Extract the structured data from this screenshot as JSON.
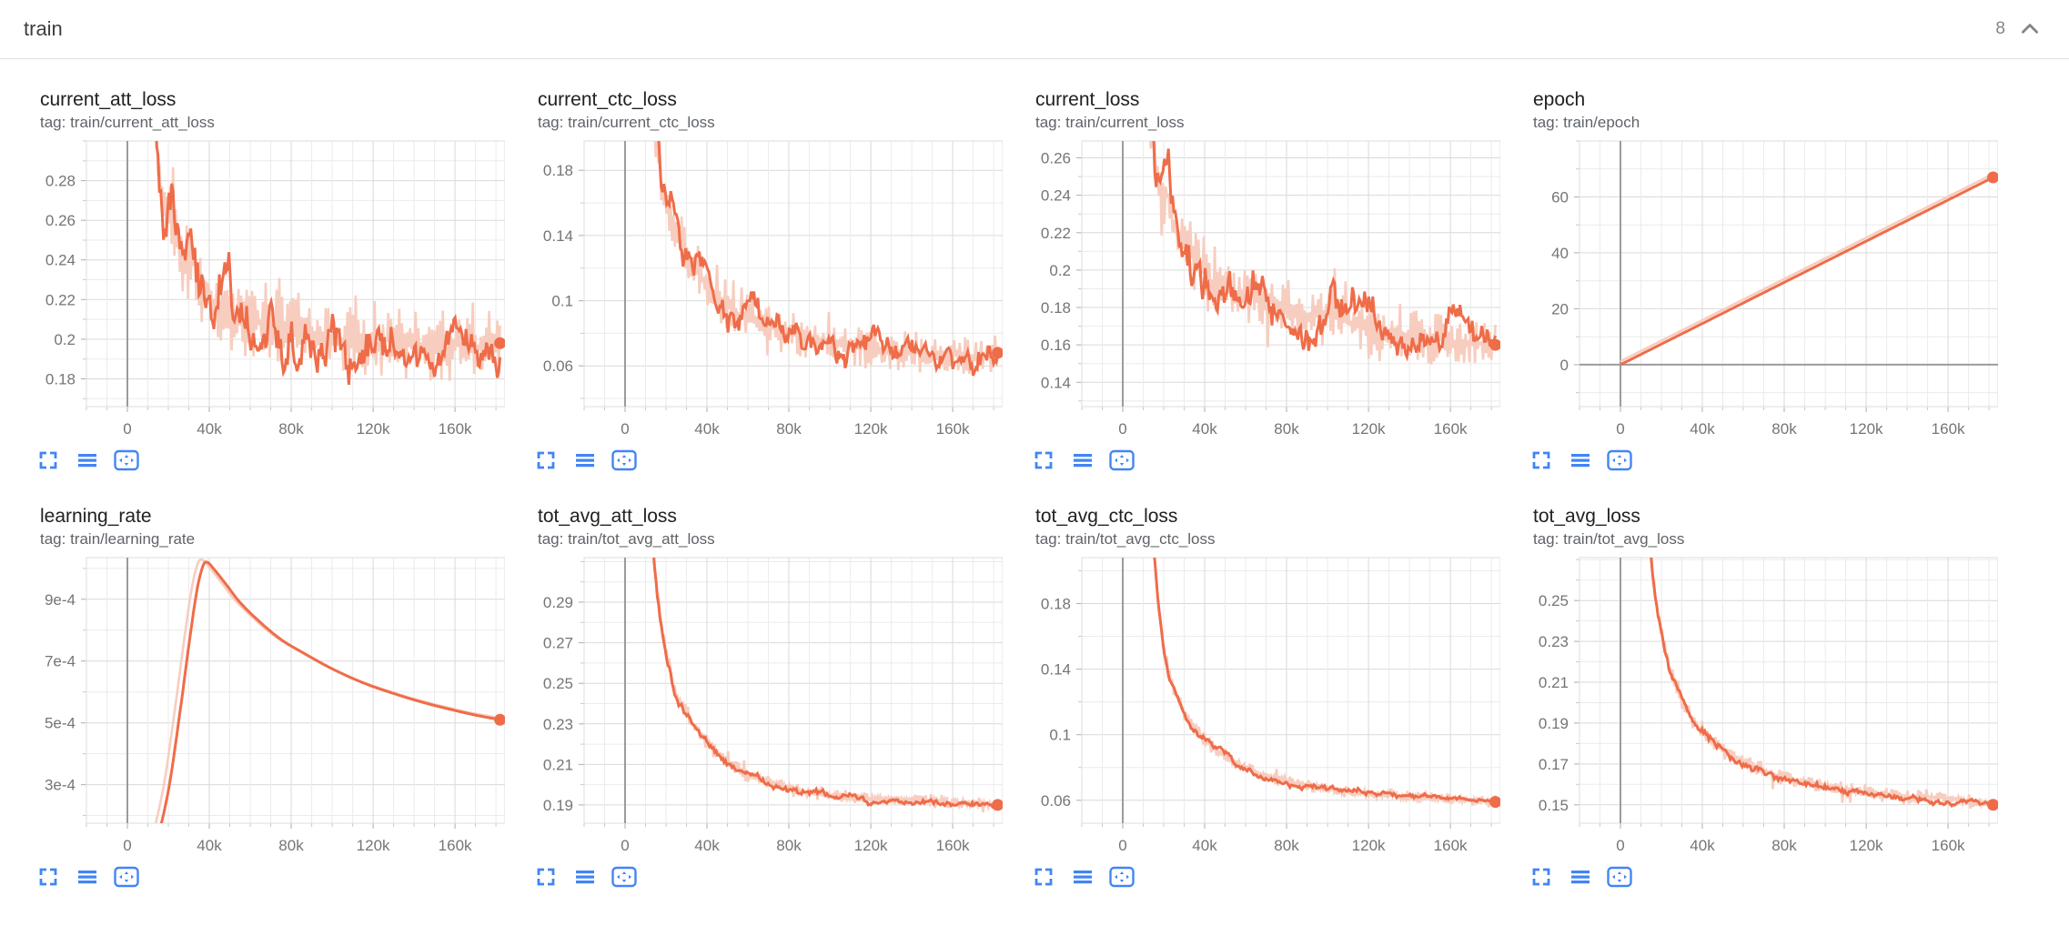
{
  "header": {
    "title": "train",
    "count": "8",
    "collapse_icon": "chevron-up"
  },
  "colors": {
    "accent": "#ef6c49",
    "accent_faint": "#f7cdbf",
    "toolbar_blue": "#4285f4",
    "grid_major": "#d9d9d9",
    "grid_minor": "#ebebeb",
    "axis_zero": "#9b9b9b",
    "tick_text": "#757575",
    "title_text": "#202124",
    "tag_text": "#5f6368",
    "divider": "#e0e0e0"
  },
  "toolbar": {
    "buttons": [
      {
        "name": "fullscreen",
        "icon": "fullscreen-icon"
      },
      {
        "name": "full-width",
        "icon": "horizontal-bars-icon"
      },
      {
        "name": "fit-data",
        "icon": "fit-domain-icon",
        "selected": true
      }
    ]
  },
  "plot_config": {
    "xlim": [
      -20000,
      184400
    ],
    "x_grid_step": 10000,
    "x_ticks": [
      0,
      40000,
      80000,
      120000,
      160000
    ],
    "x_tick_labels": [
      "0",
      "40k",
      "80k",
      "120k",
      "160k"
    ]
  },
  "chart_data": [
    {
      "type": "line",
      "title": "current_att_loss",
      "tag": "tag: train/current_att_loss",
      "ylim": [
        0.166,
        0.3
      ],
      "y_minor_step": 0.01,
      "y_ticks": [
        0.28,
        0.26,
        0.24,
        0.22,
        0.2,
        0.18
      ],
      "y_tick_labels": [
        "0.28",
        "0.26",
        "0.24",
        "0.22",
        "0.2",
        "0.18"
      ],
      "x_start": 9000,
      "x_end": 182000,
      "end_value": 0.198,
      "noise": 0.009,
      "raw_noise": 0.022,
      "raw_lead": 0,
      "raw_dy": 0,
      "seed": 3,
      "zero_y_line": false,
      "end_dot": true,
      "keypoints": [
        [
          9000,
          0.4
        ],
        [
          12000,
          0.34
        ],
        [
          14000,
          0.305
        ],
        [
          16000,
          0.285
        ],
        [
          18000,
          0.268
        ],
        [
          20000,
          0.262
        ],
        [
          22000,
          0.268
        ],
        [
          24000,
          0.252
        ],
        [
          26000,
          0.243
        ],
        [
          28000,
          0.238
        ],
        [
          30000,
          0.243
        ],
        [
          33000,
          0.235
        ],
        [
          36000,
          0.228
        ],
        [
          40000,
          0.222
        ],
        [
          45000,
          0.215
        ],
        [
          50000,
          0.212
        ],
        [
          55000,
          0.209
        ],
        [
          60000,
          0.211
        ],
        [
          70000,
          0.207
        ],
        [
          80000,
          0.205
        ],
        [
          90000,
          0.202
        ],
        [
          100000,
          0.201
        ],
        [
          110000,
          0.199
        ],
        [
          120000,
          0.198
        ],
        [
          130000,
          0.199
        ],
        [
          140000,
          0.197
        ],
        [
          150000,
          0.196
        ],
        [
          160000,
          0.197
        ],
        [
          170000,
          0.196
        ],
        [
          182000,
          0.198
        ]
      ]
    },
    {
      "type": "line",
      "title": "current_ctc_loss",
      "tag": "tag: train/current_ctc_loss",
      "ylim": [
        0.035,
        0.198
      ],
      "y_minor_step": 0.02,
      "y_ticks": [
        0.18,
        0.14,
        0.1,
        0.06
      ],
      "y_tick_labels": [
        "0.18",
        "0.14",
        "0.1",
        "0.06"
      ],
      "x_start": 9000,
      "x_end": 182000,
      "end_value": 0.068,
      "noise": 0.007,
      "raw_noise": 0.018,
      "raw_lead": 0,
      "raw_dy": 0,
      "seed": 11,
      "zero_y_line": false,
      "end_dot": true,
      "keypoints": [
        [
          9000,
          0.3
        ],
        [
          12000,
          0.245
        ],
        [
          14000,
          0.215
        ],
        [
          16000,
          0.19
        ],
        [
          18000,
          0.168
        ],
        [
          20000,
          0.158
        ],
        [
          22000,
          0.15
        ],
        [
          24000,
          0.152
        ],
        [
          26000,
          0.141
        ],
        [
          28000,
          0.134
        ],
        [
          30000,
          0.129
        ],
        [
          33000,
          0.122
        ],
        [
          36000,
          0.116
        ],
        [
          40000,
          0.109
        ],
        [
          45000,
          0.102
        ],
        [
          50000,
          0.097
        ],
        [
          55000,
          0.093
        ],
        [
          60000,
          0.09
        ],
        [
          70000,
          0.084
        ],
        [
          80000,
          0.08
        ],
        [
          90000,
          0.077
        ],
        [
          100000,
          0.074
        ],
        [
          110000,
          0.072
        ],
        [
          120000,
          0.071
        ],
        [
          130000,
          0.069
        ],
        [
          140000,
          0.068
        ],
        [
          150000,
          0.067
        ],
        [
          160000,
          0.067
        ],
        [
          170000,
          0.066
        ],
        [
          182000,
          0.068
        ]
      ]
    },
    {
      "type": "line",
      "title": "current_loss",
      "tag": "tag: train/current_loss",
      "ylim": [
        0.127,
        0.269
      ],
      "y_minor_step": 0.01,
      "y_ticks": [
        0.26,
        0.24,
        0.22,
        0.2,
        0.18,
        0.16,
        0.14
      ],
      "y_tick_labels": [
        "0.26",
        "0.24",
        "0.22",
        "0.2",
        "0.18",
        "0.16",
        "0.14"
      ],
      "x_start": 9000,
      "x_end": 182000,
      "end_value": 0.16,
      "noise": 0.008,
      "raw_noise": 0.02,
      "raw_lead": 0,
      "raw_dy": 0,
      "seed": 27,
      "zero_y_line": false,
      "end_dot": true,
      "keypoints": [
        [
          9000,
          0.37
        ],
        [
          12000,
          0.305
        ],
        [
          14000,
          0.278
        ],
        [
          16000,
          0.258
        ],
        [
          18000,
          0.243
        ],
        [
          20000,
          0.237
        ],
        [
          22000,
          0.242
        ],
        [
          24000,
          0.228
        ],
        [
          26000,
          0.221
        ],
        [
          28000,
          0.216
        ],
        [
          30000,
          0.219
        ],
        [
          33000,
          0.212
        ],
        [
          36000,
          0.206
        ],
        [
          40000,
          0.2
        ],
        [
          45000,
          0.193
        ],
        [
          50000,
          0.19
        ],
        [
          55000,
          0.187
        ],
        [
          60000,
          0.188
        ],
        [
          70000,
          0.183
        ],
        [
          80000,
          0.18
        ],
        [
          90000,
          0.177
        ],
        [
          100000,
          0.175
        ],
        [
          110000,
          0.172
        ],
        [
          120000,
          0.168
        ],
        [
          130000,
          0.167
        ],
        [
          140000,
          0.165
        ],
        [
          150000,
          0.163
        ],
        [
          160000,
          0.162
        ],
        [
          170000,
          0.161
        ],
        [
          182000,
          0.16
        ]
      ]
    },
    {
      "type": "line",
      "title": "epoch",
      "tag": "tag: train/epoch",
      "ylim": [
        -15,
        80
      ],
      "y_minor_step": 10,
      "y_ticks": [
        60,
        40,
        20,
        0
      ],
      "y_tick_labels": [
        "60",
        "40",
        "20",
        "0"
      ],
      "x_start": 0,
      "x_end": 182000,
      "end_value": 67,
      "noise": 0,
      "raw_noise": 0,
      "raw_lead": 0,
      "raw_dy": 1.2,
      "seed": 1,
      "zero_y_line": true,
      "end_dot": true,
      "keypoints": [
        [
          0,
          0
        ],
        [
          182000,
          67
        ]
      ]
    },
    {
      "type": "line",
      "title": "learning_rate",
      "tag": "tag: train/learning_rate",
      "ylim": [
        0.000175,
        0.001035
      ],
      "y_minor_step": 0.0001,
      "y_ticks": [
        0.0009,
        0.0007,
        0.0005,
        0.0003
      ],
      "y_tick_labels": [
        "9e-4",
        "7e-4",
        "5e-4",
        "3e-4"
      ],
      "x_start": 12000,
      "x_end": 182000,
      "end_value": 0.00051,
      "noise": 0,
      "raw_noise": 0,
      "raw_lead": 2500,
      "raw_dy": 8e-06,
      "seed": 5,
      "zero_y_line": false,
      "end_dot": true,
      "keypoints": [
        [
          12000,
          5e-05
        ],
        [
          20000,
          0.00028
        ],
        [
          26000,
          0.00055
        ],
        [
          30000,
          0.00075
        ],
        [
          34000,
          0.00093
        ],
        [
          37000,
          0.00101
        ],
        [
          39000,
          0.00102
        ],
        [
          42000,
          0.001
        ],
        [
          48000,
          0.00095
        ],
        [
          55000,
          0.00089
        ],
        [
          65000,
          0.000825
        ],
        [
          75000,
          0.00077
        ],
        [
          85000,
          0.00073
        ],
        [
          100000,
          0.000675
        ],
        [
          115000,
          0.00063
        ],
        [
          130000,
          0.000595
        ],
        [
          145000,
          0.000565
        ],
        [
          160000,
          0.00054
        ],
        [
          170000,
          0.000525
        ],
        [
          182000,
          0.00051
        ]
      ]
    },
    {
      "type": "line",
      "title": "tot_avg_att_loss",
      "tag": "tag: train/tot_avg_att_loss",
      "ylim": [
        0.181,
        0.312
      ],
      "y_minor_step": 0.01,
      "y_ticks": [
        0.29,
        0.27,
        0.25,
        0.23,
        0.21,
        0.19
      ],
      "y_tick_labels": [
        "0.29",
        "0.27",
        "0.25",
        "0.23",
        "0.21",
        "0.19"
      ],
      "x_start": 12500,
      "x_end": 182000,
      "end_value": 0.19,
      "noise": 0.0012,
      "raw_noise": 0.004,
      "raw_lead": 0,
      "raw_dy": 0,
      "seed": 51,
      "zero_y_line": false,
      "end_dot": true,
      "keypoints": [
        [
          12500,
          0.335
        ],
        [
          14000,
          0.315
        ],
        [
          15000,
          0.302
        ],
        [
          16000,
          0.293
        ],
        [
          17000,
          0.285
        ],
        [
          18000,
          0.277
        ],
        [
          19000,
          0.272
        ],
        [
          20000,
          0.266
        ],
        [
          21000,
          0.262
        ],
        [
          22000,
          0.258
        ],
        [
          23000,
          0.252
        ],
        [
          24000,
          0.247
        ],
        [
          25000,
          0.244
        ],
        [
          26000,
          0.242
        ],
        [
          28000,
          0.24
        ],
        [
          30000,
          0.236
        ],
        [
          32000,
          0.232
        ],
        [
          34000,
          0.229
        ],
        [
          36000,
          0.226
        ],
        [
          38000,
          0.223
        ],
        [
          40000,
          0.221
        ],
        [
          43000,
          0.217
        ],
        [
          46000,
          0.214
        ],
        [
          50000,
          0.211
        ],
        [
          55000,
          0.208
        ],
        [
          60000,
          0.205
        ],
        [
          65000,
          0.203
        ],
        [
          70000,
          0.201
        ],
        [
          75000,
          0.2
        ],
        [
          80000,
          0.199
        ],
        [
          85000,
          0.197
        ],
        [
          90000,
          0.196
        ],
        [
          95000,
          0.196
        ],
        [
          100000,
          0.195
        ],
        [
          110000,
          0.194
        ],
        [
          120000,
          0.193
        ],
        [
          130000,
          0.193
        ],
        [
          140000,
          0.192
        ],
        [
          150000,
          0.192
        ],
        [
          160000,
          0.191
        ],
        [
          170000,
          0.191
        ],
        [
          182000,
          0.19
        ]
      ]
    },
    {
      "type": "line",
      "title": "tot_avg_ctc_loss",
      "tag": "tag: train/tot_avg_ctc_loss",
      "ylim": [
        0.046,
        0.208
      ],
      "y_minor_step": 0.02,
      "y_ticks": [
        0.18,
        0.14,
        0.1,
        0.06
      ],
      "y_tick_labels": [
        "0.18",
        "0.14",
        "0.1",
        "0.06"
      ],
      "x_start": 12500,
      "x_end": 182000,
      "end_value": 0.059,
      "noise": 0.0012,
      "raw_noise": 0.0045,
      "raw_lead": 0,
      "raw_dy": 0,
      "seed": 63,
      "zero_y_line": false,
      "end_dot": true,
      "keypoints": [
        [
          12500,
          0.26
        ],
        [
          14000,
          0.23
        ],
        [
          15000,
          0.215
        ],
        [
          16000,
          0.2
        ],
        [
          17000,
          0.185
        ],
        [
          18000,
          0.172
        ],
        [
          19000,
          0.162
        ],
        [
          20000,
          0.152
        ],
        [
          21000,
          0.145
        ],
        [
          22000,
          0.14
        ],
        [
          23000,
          0.135
        ],
        [
          24000,
          0.131
        ],
        [
          25000,
          0.128
        ],
        [
          26000,
          0.124
        ],
        [
          28000,
          0.119
        ],
        [
          30000,
          0.114
        ],
        [
          32000,
          0.11
        ],
        [
          34000,
          0.106
        ],
        [
          36000,
          0.103
        ],
        [
          38000,
          0.1
        ],
        [
          40000,
          0.097
        ],
        [
          43000,
          0.094
        ],
        [
          46000,
          0.091
        ],
        [
          50000,
          0.087
        ],
        [
          55000,
          0.083
        ],
        [
          60000,
          0.08
        ],
        [
          65000,
          0.077
        ],
        [
          70000,
          0.075
        ],
        [
          75000,
          0.073
        ],
        [
          80000,
          0.072
        ],
        [
          85000,
          0.07
        ],
        [
          90000,
          0.069
        ],
        [
          95000,
          0.068
        ],
        [
          100000,
          0.067
        ],
        [
          110000,
          0.065
        ],
        [
          120000,
          0.064
        ],
        [
          130000,
          0.063
        ],
        [
          140000,
          0.062
        ],
        [
          150000,
          0.062
        ],
        [
          160000,
          0.061
        ],
        [
          170000,
          0.06
        ],
        [
          182000,
          0.059
        ]
      ]
    },
    {
      "type": "line",
      "title": "tot_avg_loss",
      "tag": "tag: train/tot_avg_loss",
      "ylim": [
        0.141,
        0.271
      ],
      "y_minor_step": 0.01,
      "y_ticks": [
        0.25,
        0.23,
        0.21,
        0.19,
        0.17,
        0.15
      ],
      "y_tick_labels": [
        "0.25",
        "0.23",
        "0.21",
        "0.19",
        "0.17",
        "0.15"
      ],
      "x_start": 12500,
      "x_end": 182000,
      "end_value": 0.15,
      "noise": 0.0013,
      "raw_noise": 0.005,
      "raw_lead": 0,
      "raw_dy": 0,
      "seed": 77,
      "zero_y_line": false,
      "end_dot": true,
      "keypoints": [
        [
          12500,
          0.3
        ],
        [
          14000,
          0.285
        ],
        [
          15000,
          0.272
        ],
        [
          16000,
          0.262
        ],
        [
          17000,
          0.253
        ],
        [
          18000,
          0.246
        ],
        [
          19000,
          0.24
        ],
        [
          20000,
          0.235
        ],
        [
          21000,
          0.23
        ],
        [
          22000,
          0.226
        ],
        [
          23000,
          0.221
        ],
        [
          24000,
          0.217
        ],
        [
          25000,
          0.214
        ],
        [
          26000,
          0.211
        ],
        [
          28000,
          0.206
        ],
        [
          30000,
          0.201
        ],
        [
          32000,
          0.197
        ],
        [
          34000,
          0.194
        ],
        [
          36000,
          0.191
        ],
        [
          38000,
          0.188
        ],
        [
          40000,
          0.186
        ],
        [
          43000,
          0.183
        ],
        [
          46000,
          0.18
        ],
        [
          50000,
          0.177
        ],
        [
          55000,
          0.174
        ],
        [
          60000,
          0.171
        ],
        [
          65000,
          0.169
        ],
        [
          70000,
          0.167
        ],
        [
          75000,
          0.165
        ],
        [
          80000,
          0.164
        ],
        [
          85000,
          0.162
        ],
        [
          90000,
          0.161
        ],
        [
          95000,
          0.16
        ],
        [
          100000,
          0.159
        ],
        [
          110000,
          0.157
        ],
        [
          120000,
          0.156
        ],
        [
          130000,
          0.155
        ],
        [
          140000,
          0.154
        ],
        [
          150000,
          0.154
        ],
        [
          160000,
          0.153
        ],
        [
          170000,
          0.152
        ],
        [
          182000,
          0.15
        ]
      ]
    }
  ]
}
